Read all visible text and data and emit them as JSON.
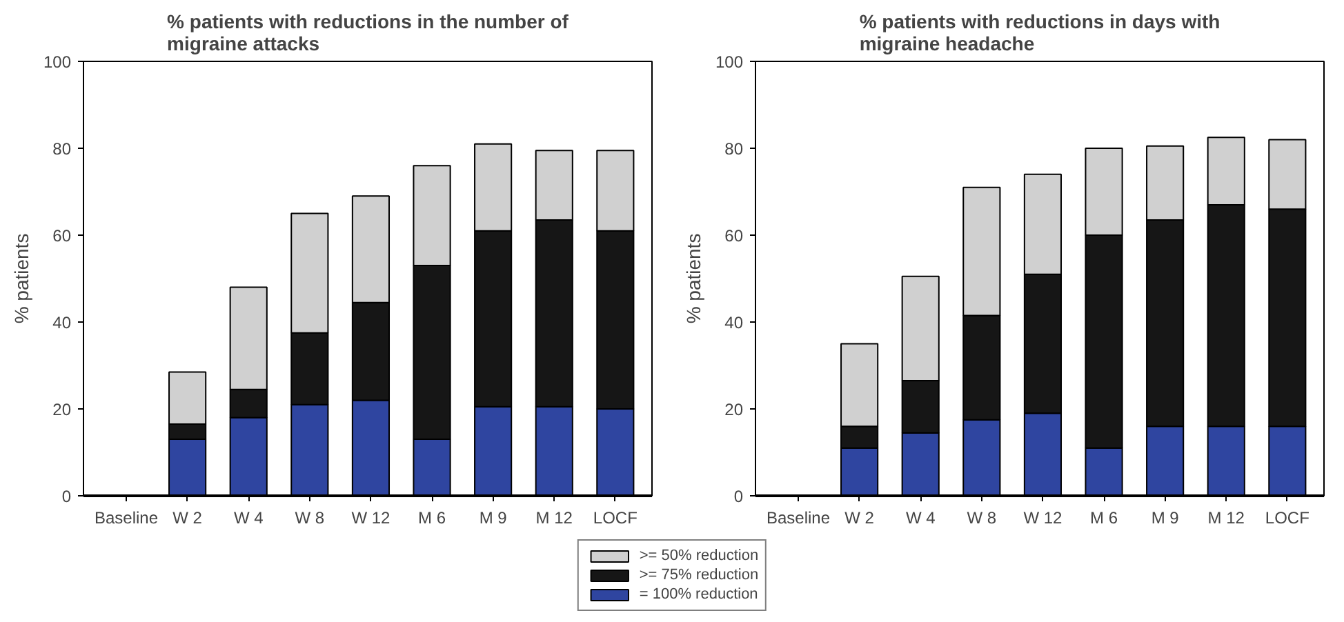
{
  "chart_data": [
    {
      "type": "bar",
      "title": "% patients with reductions in the number of migraine attacks",
      "ylabel": "% patients",
      "categories": [
        "Baseline",
        "W 2",
        "W 4",
        "W 8",
        "W 12",
        "M 6",
        "M 9",
        "M 12",
        "LOCF"
      ],
      "stacked": true,
      "ylim": [
        0,
        100
      ],
      "yticks": [
        0,
        20,
        40,
        60,
        80,
        100
      ],
      "grid": false,
      "legend": "bottom",
      "series": [
        {
          "name": "= 100% reduction",
          "color": "#2f45a0",
          "values": [
            0,
            13,
            18,
            21,
            22,
            13,
            20.5,
            20.5,
            20
          ]
        },
        {
          "name": ">= 75% reduction",
          "color": "#161616",
          "values": [
            0,
            3.5,
            6.5,
            16.5,
            22.5,
            40,
            40.5,
            43,
            41
          ]
        },
        {
          "name": ">= 50% reduction",
          "color": "#d0d0d0",
          "values": [
            0,
            12,
            23.5,
            27.5,
            24.5,
            23,
            20,
            16,
            18.5
          ]
        }
      ]
    },
    {
      "type": "bar",
      "title": "% patients with reductions in days with migraine headache",
      "ylabel": "% patients",
      "categories": [
        "Baseline",
        "W 2",
        "W 4",
        "W 8",
        "W 12",
        "M 6",
        "M 9",
        "M 12",
        "LOCF"
      ],
      "stacked": true,
      "ylim": [
        0,
        100
      ],
      "yticks": [
        0,
        20,
        40,
        60,
        80,
        100
      ],
      "grid": false,
      "series": [
        {
          "color": "#2f45a0",
          "values": [
            0,
            11,
            14.5,
            17.5,
            19,
            11,
            16,
            16,
            16
          ]
        },
        {
          "color": "#161616",
          "values": [
            0,
            5,
            12,
            24,
            32,
            49,
            47.5,
            51,
            50
          ]
        },
        {
          "color": "#d0d0d0",
          "values": [
            0,
            19,
            24,
            29.5,
            23,
            20,
            17,
            15.5,
            16
          ]
        }
      ]
    }
  ]
}
